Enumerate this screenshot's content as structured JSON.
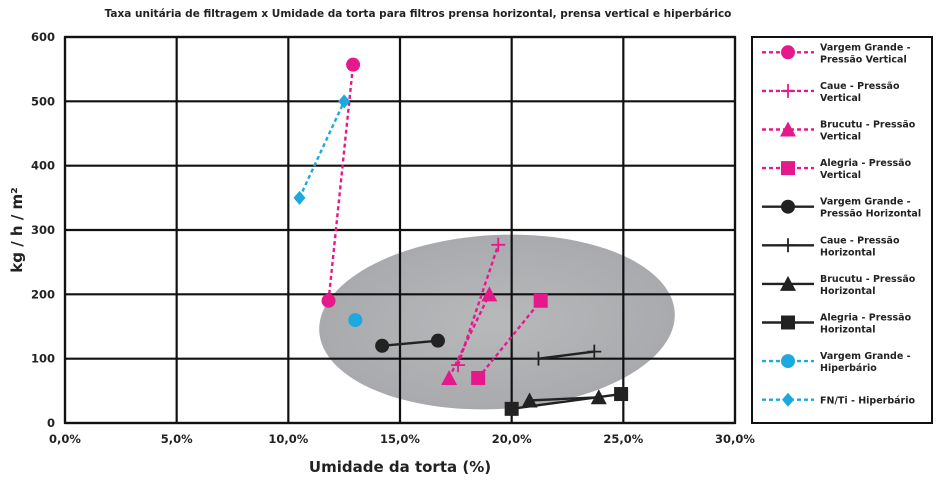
{
  "chart_data": {
    "type": "scatter",
    "title": "Taxa unitária de filtragem x Umidade da torta para filtros prensa horizontal, prensa vertical e hiperbárico",
    "xlabel": "Umidade da torta (%)",
    "ylabel": "kg / h / m²",
    "xlim": [
      0,
      30
    ],
    "ylim": [
      0,
      600
    ],
    "x_ticks": [
      "0,0%",
      "5,0%",
      "10,0%",
      "15,0%",
      "20,0%",
      "25,0%",
      "30,0%"
    ],
    "y_ticks": [
      "0",
      "100",
      "200",
      "300",
      "400",
      "500",
      "600"
    ],
    "grid": true,
    "legend_position": "right",
    "series": [
      {
        "name": "Vargem Grande - Pressão Vertical",
        "color": "#e6198c",
        "dash": true,
        "marker": "circle",
        "x": [
          11.8,
          12.9
        ],
        "y": [
          190,
          557
        ]
      },
      {
        "name": "Caue - Pressão Vertical",
        "color": "#e6198c",
        "dash": true,
        "marker": "plus",
        "x": [
          17.6,
          19.4
        ],
        "y": [
          90,
          277
        ]
      },
      {
        "name": "Brucutu - Pressão Vertical",
        "color": "#e6198c",
        "dash": true,
        "marker": "triangle",
        "x": [
          17.2,
          19.0
        ],
        "y": [
          70,
          200
        ]
      },
      {
        "name": "Alegria - Pressão Vertical",
        "color": "#e6198c",
        "dash": true,
        "marker": "square",
        "x": [
          18.5,
          21.3
        ],
        "y": [
          70,
          190
        ]
      },
      {
        "name": "Vargem Grande - Pressão Horizontal",
        "color": "#222222",
        "dash": false,
        "marker": "circle",
        "x": [
          14.2,
          16.7
        ],
        "y": [
          120,
          128
        ]
      },
      {
        "name": "Caue - Pressão Horizontal",
        "color": "#222222",
        "dash": false,
        "marker": "plus",
        "x": [
          21.2,
          23.7
        ],
        "y": [
          100,
          111
        ]
      },
      {
        "name": "Brucutu - Pressão Horizontal",
        "color": "#222222",
        "dash": false,
        "marker": "triangle",
        "x": [
          20.8,
          23.9
        ],
        "y": [
          35,
          40
        ]
      },
      {
        "name": "Alegria - Pressão Horizontal",
        "color": "#222222",
        "dash": false,
        "marker": "square",
        "x": [
          20.0,
          24.9
        ],
        "y": [
          22,
          45
        ]
      },
      {
        "name": "Vargem Grande - Hiperbário",
        "color": "#1ca9e0",
        "dash": true,
        "marker": "circle",
        "x": [
          13.0
        ],
        "y": [
          160
        ]
      },
      {
        "name": "FN/Ti - Hiperbário",
        "color": "#1ca9e0",
        "dash": true,
        "marker": "diamond",
        "x": [
          10.5,
          12.5
        ],
        "y": [
          350,
          500
        ]
      }
    ]
  }
}
